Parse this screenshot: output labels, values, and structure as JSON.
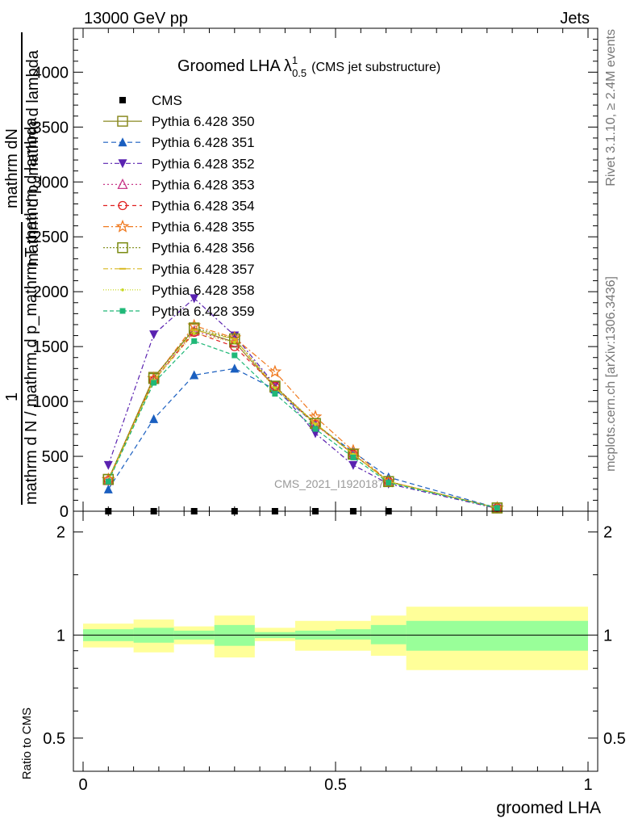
{
  "header": {
    "left": "13000 GeV pp",
    "right": "Jets"
  },
  "side": {
    "top": "Rivet 3.1.10, ≥ 2.4M events",
    "bottom": "mcplots.cern.ch [arXiv:1306.3436]"
  },
  "watermark": "CMS_2021_I1920187",
  "chart_data": [
    {
      "type": "line",
      "title_main": "Groomed LHA",
      "title_lambda": "λ",
      "title_sup": "1",
      "title_sub": "0.5",
      "title_note": "(CMS jet substructure)",
      "ylabel_top": "mathrm dN",
      "ylabel_top_b": "mathrm d p_mathrm d lambda",
      "ylabel_one": "1",
      "ylabel_bottom": "mathrm d N / mathrm d p_mathrm T mathrm d lambda",
      "xlim": [
        0,
        1
      ],
      "ylim": [
        0,
        4400
      ],
      "yticks": [
        0,
        500,
        1000,
        1500,
        2000,
        2500,
        3000,
        3500,
        4000
      ],
      "ytick_labels": [
        "0",
        "500",
        "1000",
        "1500",
        "2000",
        "2500",
        "3000",
        "3500",
        "4000"
      ],
      "x": [
        0.05,
        0.14,
        0.22,
        0.3,
        0.38,
        0.46,
        0.535,
        0.605,
        0.82
      ],
      "data": {
        "name": "CMS",
        "values": [
          0,
          0,
          0,
          0,
          0,
          0,
          0,
          0,
          0
        ]
      },
      "series": [
        {
          "name": "Pythia 6.428 350",
          "color": "#8a8a22",
          "marker": "open-square",
          "dash": "",
          "values": [
            290,
            1220,
            1660,
            1540,
            1130,
            800,
            520,
            270,
            30
          ]
        },
        {
          "name": "Pythia 6.428 351",
          "color": "#1a5fc0",
          "marker": "filled-triangle-up",
          "dash": "6,4",
          "values": [
            200,
            840,
            1240,
            1300,
            1110,
            790,
            540,
            310,
            30
          ]
        },
        {
          "name": "Pythia 6.428 352",
          "color": "#5a22b0",
          "marker": "filled-triangle-down",
          "dash": "6,3,2,3",
          "values": [
            420,
            1610,
            1940,
            1600,
            1150,
            710,
            420,
            250,
            25
          ]
        },
        {
          "name": "Pythia 6.428 353",
          "color": "#c83a8a",
          "marker": "open-triangle-up",
          "dash": "2,3",
          "values": [
            280,
            1200,
            1640,
            1540,
            1130,
            790,
            520,
            270,
            30
          ]
        },
        {
          "name": "Pythia 6.428 354",
          "color": "#e02020",
          "marker": "open-circle",
          "dash": "5,4",
          "values": [
            280,
            1190,
            1630,
            1500,
            1140,
            790,
            520,
            270,
            30
          ]
        },
        {
          "name": "Pythia 6.428 355",
          "color": "#f07a20",
          "marker": "open-star",
          "dash": "7,3,2,3",
          "values": [
            290,
            1210,
            1690,
            1580,
            1270,
            860,
            550,
            270,
            30
          ]
        },
        {
          "name": "Pythia 6.428 356",
          "color": "#7a8a10",
          "marker": "open-square",
          "dash": "2,2",
          "values": [
            290,
            1210,
            1670,
            1570,
            1140,
            800,
            520,
            270,
            30
          ]
        },
        {
          "name": "Pythia 6.428 357",
          "color": "#d8b820",
          "marker": "dash",
          "dash": "6,3,2,3",
          "values": [
            280,
            1190,
            1650,
            1570,
            1130,
            800,
            520,
            270,
            30
          ]
        },
        {
          "name": "Pythia 6.428 358",
          "color": "#c8d820",
          "marker": "dot",
          "dash": "1,2",
          "values": [
            280,
            1190,
            1620,
            1540,
            1120,
            790,
            520,
            270,
            30
          ]
        },
        {
          "name": "Pythia 6.428 359",
          "color": "#20b878",
          "marker": "filled-square",
          "dash": "5,3",
          "values": [
            270,
            1170,
            1550,
            1420,
            1070,
            750,
            490,
            260,
            30
          ]
        }
      ]
    },
    {
      "type": "area",
      "ylabel": "Ratio to CMS",
      "xlabel": "groomed LHA",
      "xlim": [
        0,
        1
      ],
      "ylim": [
        0.4,
        2.3
      ],
      "ytick_labels": [
        "0.5",
        "1",
        "2"
      ],
      "yticks": [
        0.5,
        1,
        2
      ],
      "xtick_labels": [
        "0",
        "0.5",
        "1"
      ],
      "xticks": [
        0,
        0.5,
        1
      ],
      "bin_edges": [
        0,
        0.1,
        0.18,
        0.26,
        0.34,
        0.42,
        0.5,
        0.57,
        0.64,
        1.0
      ],
      "inner_band": {
        "color": "#99ff99",
        "lo": [
          0.96,
          0.95,
          0.97,
          0.93,
          0.98,
          0.97,
          0.97,
          0.94,
          0.9
        ],
        "hi": [
          1.04,
          1.05,
          1.03,
          1.07,
          1.02,
          1.03,
          1.04,
          1.07,
          1.1
        ]
      },
      "outer_band": {
        "color": "#ffff99",
        "lo": [
          0.92,
          0.89,
          0.94,
          0.86,
          0.96,
          0.9,
          0.9,
          0.87,
          0.79
        ],
        "hi": [
          1.08,
          1.11,
          1.06,
          1.14,
          1.05,
          1.1,
          1.1,
          1.14,
          1.21
        ]
      },
      "reference": 1
    }
  ]
}
